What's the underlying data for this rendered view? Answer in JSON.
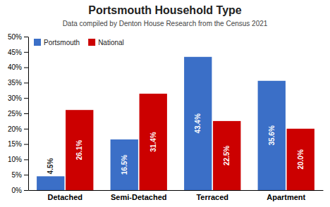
{
  "chart_data": {
    "type": "bar",
    "title": "Portsmouth Household Type",
    "subtitle": "Data compiled by Denton House Research from the Census 2021",
    "categories": [
      "Detached",
      "Semi-Detached",
      "Terraced",
      "Apartment"
    ],
    "series": [
      {
        "name": "Portsmouth",
        "color": "#3b6fc7",
        "values": [
          4.5,
          16.5,
          43.4,
          35.6
        ],
        "value_labels": [
          "4.5%",
          "16.5%",
          "43.4%",
          "35.6%"
        ]
      },
      {
        "name": "National",
        "color": "#cc0000",
        "values": [
          26.1,
          31.4,
          22.5,
          20.0
        ],
        "value_labels": [
          "26.1%",
          "31.4%",
          "22.5%",
          "20.0%"
        ]
      }
    ],
    "ylim": [
      0,
      50
    ],
    "yticks": [
      {
        "value": 0,
        "label": "0%"
      },
      {
        "value": 5,
        "label": "5%"
      },
      {
        "value": 10,
        "label": "10%"
      },
      {
        "value": 15,
        "label": "15%"
      },
      {
        "value": 20,
        "label": "20%"
      },
      {
        "value": 25,
        "label": "25%"
      },
      {
        "value": 30,
        "label": "30%"
      },
      {
        "value": 35,
        "label": "35%"
      },
      {
        "value": 40,
        "label": "40%"
      },
      {
        "value": 45,
        "label": "45%"
      },
      {
        "value": 50,
        "label": "50%"
      }
    ],
    "data_labels": true,
    "legend": "upper left",
    "grid": false
  }
}
